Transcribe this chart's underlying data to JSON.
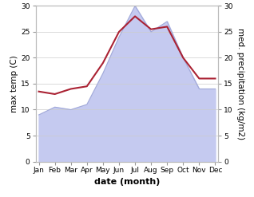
{
  "months": [
    "Jan",
    "Feb",
    "Mar",
    "Apr",
    "May",
    "Jun",
    "Jul",
    "Aug",
    "Sep",
    "Oct",
    "Nov",
    "Dec"
  ],
  "precipitation": [
    9,
    10.5,
    10,
    11,
    17,
    24,
    30,
    25,
    27,
    20,
    14,
    14
  ],
  "max_temp": [
    13.5,
    13.0,
    14.0,
    14.5,
    19.0,
    25.0,
    28.0,
    25.5,
    26.0,
    20.0,
    16.0,
    16.0
  ],
  "precip_color_fill": "#c5caf0",
  "precip_color_edge": "#a0a8d8",
  "temp_color": "#aa2233",
  "ylim": [
    0,
    30
  ],
  "yticks": [
    0,
    5,
    10,
    15,
    20,
    25,
    30
  ],
  "ylabel_left": "max temp (C)",
  "ylabel_right": "med. precipitation (kg/m2)",
  "xlabel": "date (month)",
  "background_color": "#ffffff",
  "grid_color": "#cccccc",
  "tick_fontsize": 6.5,
  "label_fontsize": 7.5,
  "xlabel_fontsize": 8
}
